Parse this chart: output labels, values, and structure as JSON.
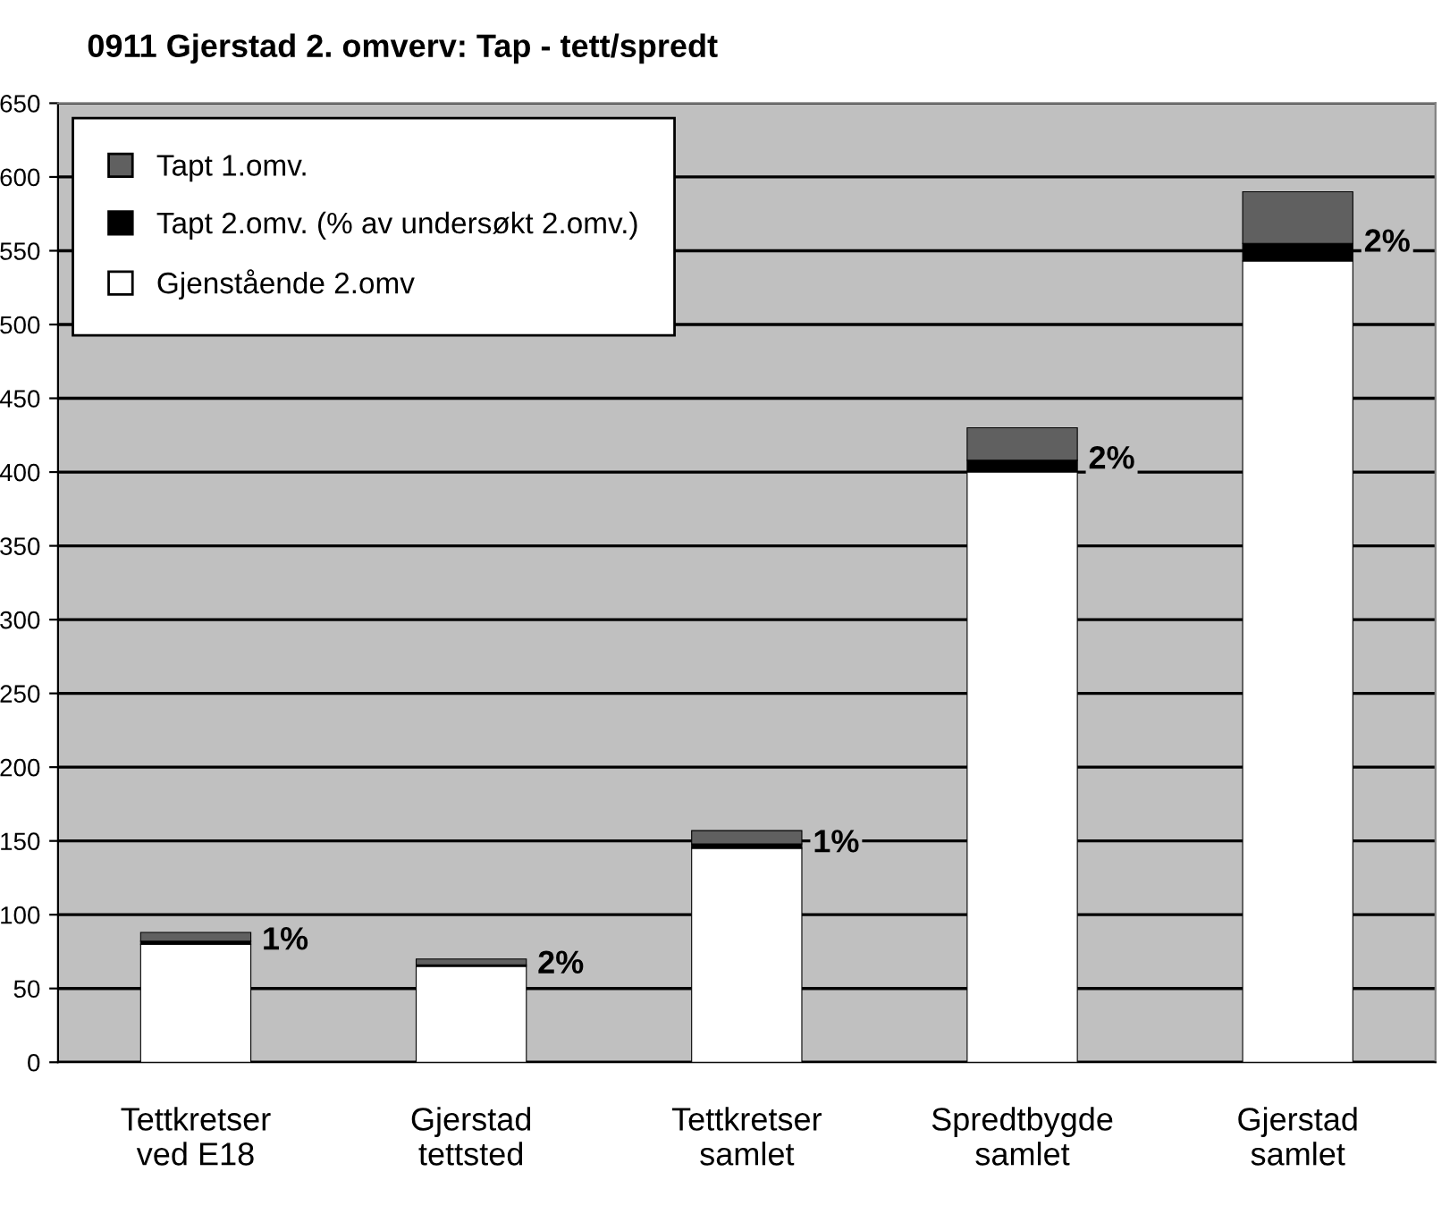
{
  "chart_data": {
    "type": "bar",
    "title": "0911 Gjerstad 2. omverv: Tap - tett/spredt",
    "stacked": true,
    "categories": [
      "Tettkretser\nved E18",
      "Gjerstad\ntettsted",
      "Tettkretser\nsamlet",
      "Spredtbygde\nsamlet",
      "Gjerstad\nsamlet"
    ],
    "series": [
      {
        "name": "Gjenstående 2.omv",
        "color": "#ffffff",
        "values": [
          80,
          65,
          145,
          400,
          543
        ]
      },
      {
        "name": "Tapt 2.omv. (% av undersøkt 2.omv.)",
        "color": "#000000",
        "values": [
          2,
          1,
          3,
          8,
          12
        ]
      },
      {
        "name": "Tapt 1.omv.",
        "color": "#606060",
        "values": [
          6,
          4,
          9,
          22,
          35
        ]
      }
    ],
    "ylim": [
      0,
      650
    ],
    "yticks": [
      0,
      50,
      100,
      150,
      200,
      250,
      300,
      350,
      400,
      450,
      500,
      550,
      600,
      650
    ],
    "annotations": [
      {
        "text": "1%",
        "x": "Tettkretser\nved E18",
        "y": 82
      },
      {
        "text": "2%",
        "x": "Gjerstad\ntettsted",
        "y": 66
      },
      {
        "text": "1%",
        "x": "Tettkretser\nsamlet",
        "y": 148
      },
      {
        "text": "2%",
        "x": "Spredtbygde\nsamlet",
        "y": 408
      },
      {
        "text": "2%",
        "x": "Gjerstad\nsamlet",
        "y": 555
      }
    ],
    "grid": "y",
    "legend": "top left"
  }
}
